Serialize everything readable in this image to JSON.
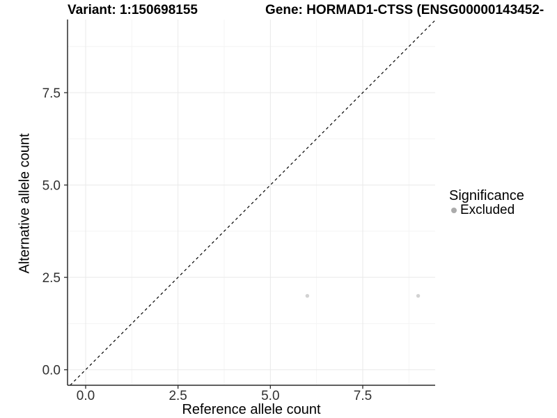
{
  "chart_data": {
    "type": "scatter",
    "title_left": "Variant: 1:150698155",
    "title_right": "Gene: HORMAD1-CTSS (ENSG00000143452-",
    "xlabel": "Reference allele count",
    "ylabel": "Alternative allele count",
    "xlim": [
      -0.49,
      9.46
    ],
    "ylim": [
      -0.42,
      9.48
    ],
    "x_ticks": [
      0,
      2.5,
      5,
      7.5
    ],
    "x_tick_labels": [
      "0.0",
      "2.5",
      "5.0",
      "7.5"
    ],
    "y_ticks": [
      0,
      2.5,
      5,
      7.5
    ],
    "y_tick_labels": [
      "0.0",
      "2.5",
      "5.0",
      "7.5"
    ],
    "x_minor_ticks": [
      1.25,
      3.75,
      6.25,
      8.75
    ],
    "y_minor_ticks": [
      1.25,
      3.75,
      6.25,
      8.75
    ],
    "grid": true,
    "identity_line": {
      "style": "dashed",
      "color": "#000000"
    },
    "point_radius": 2.7,
    "series": [
      {
        "name": "Excluded",
        "color": "#d2d2d2",
        "points": [
          {
            "x": 6,
            "y": 2
          },
          {
            "x": 9,
            "y": 2
          }
        ]
      }
    ],
    "legend": {
      "title": "Significance",
      "position": "right",
      "items": [
        {
          "label": "Excluded",
          "color": "#ababab"
        }
      ]
    }
  },
  "colors": {
    "grid_major": "#e9e9e9",
    "grid_minor": "#f4f4f4",
    "axis_line": "#2b2b2b",
    "tick_text": "#303030"
  }
}
